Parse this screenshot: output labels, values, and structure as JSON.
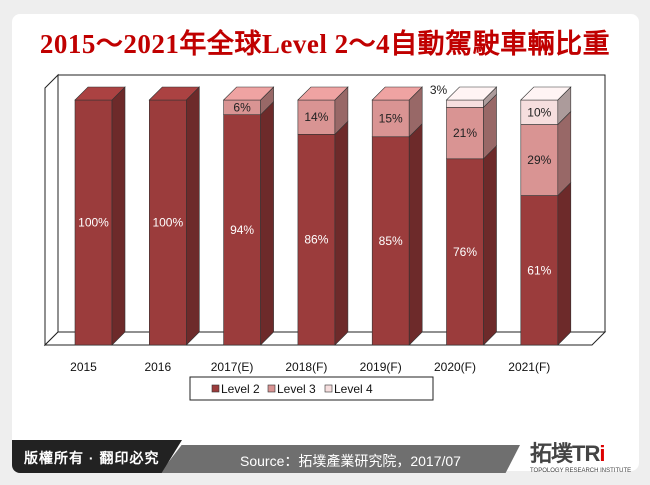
{
  "chart_data": {
    "type": "bar",
    "stacked": true,
    "style": "3d",
    "title": "2015～2021年全球Level 2～4自動駕駛車輛比重",
    "categories": [
      "2015",
      "2016",
      "2017(E)",
      "2018(F)",
      "2019(F)",
      "2020(F)",
      "2021(F)"
    ],
    "series": [
      {
        "name": "Level 2",
        "values": [
          100,
          100,
          94,
          86,
          85,
          76,
          61
        ],
        "color": "#9b3c3c"
      },
      {
        "name": "Level 3",
        "values": [
          0,
          0,
          6,
          14,
          15,
          21,
          29
        ],
        "color": "#d99493"
      },
      {
        "name": "Level 4",
        "values": [
          0,
          0,
          0,
          0,
          0,
          3,
          10
        ],
        "color": "#f6dede"
      }
    ],
    "ylim": [
      0,
      100
    ],
    "legend": "bottom",
    "grid": false,
    "value_suffix": "%"
  },
  "footer": {
    "copyright": "版權所有 · 翻印必究",
    "source": "Source：拓墣產業研究院，2017/07"
  },
  "logo": {
    "text": "拓墣TRi",
    "subtitle": "TOPOLOGY RESEARCH INSTITUTE"
  }
}
